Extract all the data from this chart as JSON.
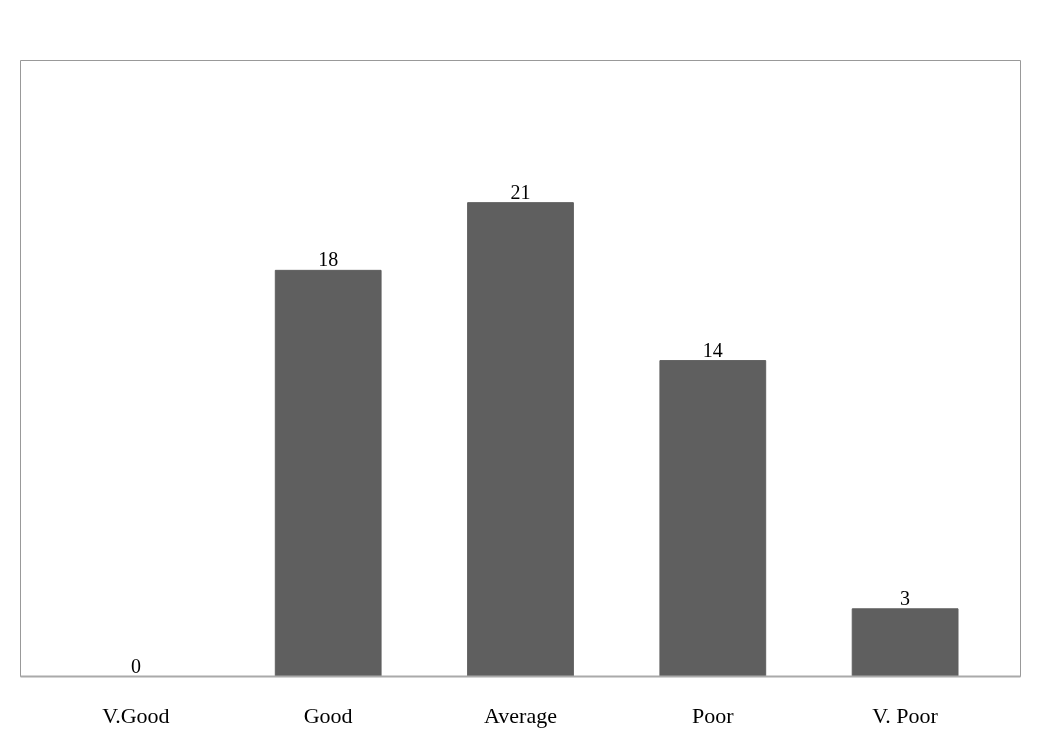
{
  "chart_data": {
    "type": "bar",
    "categories": [
      "V.Good",
      "Good",
      "Average",
      "Poor",
      "V. Poor"
    ],
    "values": [
      0,
      18,
      21,
      14,
      3
    ],
    "color": "#5f5f5f",
    "data_labels": true,
    "tick_labels": "x",
    "grid": false
  }
}
